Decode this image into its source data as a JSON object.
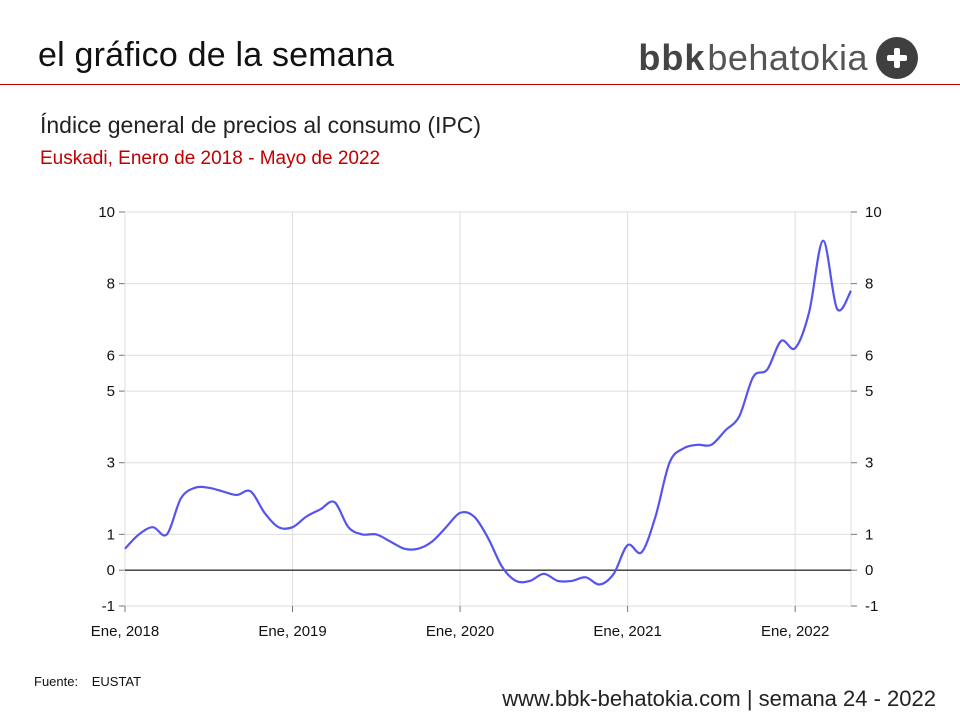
{
  "header": {
    "title": "el gráfico de la semana",
    "logo": {
      "bold": "bbk",
      "regular": "behatokia",
      "icon": "plus-circle-icon"
    }
  },
  "colors": {
    "accent": "#c00000",
    "line": "#5555ee",
    "grid": "#dddddd",
    "zero": "#333333"
  },
  "chart_data": {
    "type": "line",
    "title": "Índice general de precios al consumo (IPC)",
    "subtitle": "Euskadi, Enero de 2018 - Mayo de 2022",
    "ylim": [
      -1,
      10
    ],
    "yticks": [
      10,
      8,
      6,
      5,
      3,
      1,
      0,
      -1
    ],
    "ytick_labels": [
      "10",
      "8",
      "6",
      "5",
      "3",
      "1",
      "0",
      "-1"
    ],
    "xtick_labels": [
      "Ene, 2018",
      "Ene, 2019",
      "Ene, 2020",
      "Ene, 2021",
      "Ene, 2022"
    ],
    "grid": true,
    "right_axis": true,
    "x": [
      "2018-01",
      "2018-02",
      "2018-03",
      "2018-04",
      "2018-05",
      "2018-06",
      "2018-07",
      "2018-08",
      "2018-09",
      "2018-10",
      "2018-11",
      "2018-12",
      "2019-01",
      "2019-02",
      "2019-03",
      "2019-04",
      "2019-05",
      "2019-06",
      "2019-07",
      "2019-08",
      "2019-09",
      "2019-10",
      "2019-11",
      "2019-12",
      "2020-01",
      "2020-02",
      "2020-03",
      "2020-04",
      "2020-05",
      "2020-06",
      "2020-07",
      "2020-08",
      "2020-09",
      "2020-10",
      "2020-11",
      "2020-12",
      "2021-01",
      "2021-02",
      "2021-03",
      "2021-04",
      "2021-05",
      "2021-06",
      "2021-07",
      "2021-08",
      "2021-09",
      "2021-10",
      "2021-11",
      "2021-12",
      "2022-01",
      "2022-02",
      "2022-03",
      "2022-04",
      "2022-05"
    ],
    "series": [
      {
        "values": [
          0.6,
          1.0,
          1.2,
          1.0,
          2.0,
          2.3,
          2.3,
          2.2,
          2.1,
          2.2,
          1.6,
          1.2,
          1.2,
          1.5,
          1.7,
          1.9,
          1.2,
          1.0,
          1.0,
          0.8,
          0.6,
          0.6,
          0.8,
          1.2,
          1.6,
          1.5,
          0.9,
          0.1,
          -0.3,
          -0.3,
          -0.1,
          -0.3,
          -0.3,
          -0.2,
          -0.4,
          -0.1,
          0.7,
          0.5,
          1.5,
          3.0,
          3.4,
          3.5,
          3.5,
          3.9,
          4.3,
          5.4,
          5.6,
          6.4,
          6.2,
          7.2,
          9.2,
          7.3,
          7.8
        ]
      }
    ]
  },
  "source": {
    "label": "Fuente:",
    "value": "EUSTAT"
  },
  "footer": "www.bbk-behatokia.com | semana 24 - 2022"
}
